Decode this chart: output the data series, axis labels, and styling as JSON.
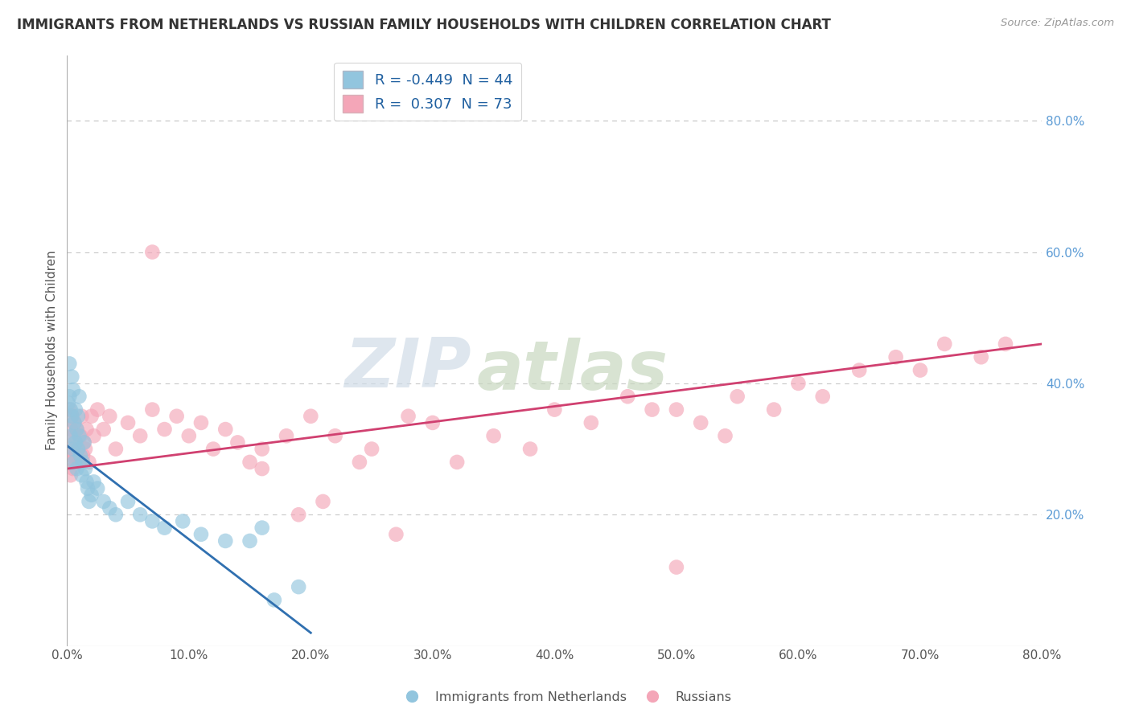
{
  "title": "IMMIGRANTS FROM NETHERLANDS VS RUSSIAN FAMILY HOUSEHOLDS WITH CHILDREN CORRELATION CHART",
  "source": "Source: ZipAtlas.com",
  "xlabel_bottom": "Immigrants from Netherlands",
  "ylabel": "Family Households with Children",
  "legend_label1": "Immigrants from Netherlands",
  "legend_label2": "Russians",
  "R1": -0.449,
  "N1": 44,
  "R2": 0.307,
  "N2": 73,
  "color_blue": "#92c5de",
  "color_pink": "#f4a6b8",
  "line_color_blue": "#3070b0",
  "line_color_pink": "#d04070",
  "xlim": [
    0.0,
    0.8
  ],
  "ylim": [
    0.0,
    0.9
  ],
  "xticks": [
    0.0,
    0.1,
    0.2,
    0.3,
    0.4,
    0.5,
    0.6,
    0.7,
    0.8
  ],
  "yticks_right": [
    0.2,
    0.4,
    0.6,
    0.8
  ],
  "blue_x": [
    0.001,
    0.002,
    0.002,
    0.003,
    0.003,
    0.004,
    0.004,
    0.005,
    0.005,
    0.006,
    0.006,
    0.007,
    0.007,
    0.008,
    0.008,
    0.009,
    0.009,
    0.01,
    0.01,
    0.011,
    0.012,
    0.013,
    0.014,
    0.015,
    0.016,
    0.017,
    0.018,
    0.02,
    0.022,
    0.025,
    0.03,
    0.035,
    0.04,
    0.05,
    0.06,
    0.07,
    0.08,
    0.095,
    0.11,
    0.13,
    0.15,
    0.16,
    0.17,
    0.19
  ],
  "blue_y": [
    0.37,
    0.43,
    0.38,
    0.36,
    0.32,
    0.41,
    0.35,
    0.39,
    0.3,
    0.34,
    0.28,
    0.36,
    0.31,
    0.33,
    0.27,
    0.35,
    0.3,
    0.32,
    0.38,
    0.29,
    0.26,
    0.28,
    0.31,
    0.27,
    0.25,
    0.24,
    0.22,
    0.23,
    0.25,
    0.24,
    0.22,
    0.21,
    0.2,
    0.22,
    0.2,
    0.19,
    0.18,
    0.19,
    0.17,
    0.16,
    0.16,
    0.18,
    0.07,
    0.09
  ],
  "pink_x": [
    0.001,
    0.002,
    0.002,
    0.003,
    0.003,
    0.004,
    0.004,
    0.005,
    0.005,
    0.006,
    0.006,
    0.007,
    0.008,
    0.009,
    0.01,
    0.011,
    0.012,
    0.013,
    0.014,
    0.015,
    0.016,
    0.018,
    0.02,
    0.022,
    0.025,
    0.03,
    0.035,
    0.04,
    0.05,
    0.06,
    0.07,
    0.08,
    0.09,
    0.1,
    0.11,
    0.12,
    0.13,
    0.14,
    0.15,
    0.16,
    0.18,
    0.2,
    0.22,
    0.25,
    0.28,
    0.3,
    0.32,
    0.35,
    0.38,
    0.4,
    0.43,
    0.46,
    0.48,
    0.5,
    0.52,
    0.54,
    0.55,
    0.58,
    0.6,
    0.62,
    0.65,
    0.68,
    0.7,
    0.72,
    0.75,
    0.77,
    0.16,
    0.19,
    0.21,
    0.24,
    0.27,
    0.5,
    0.07
  ],
  "pink_y": [
    0.3,
    0.36,
    0.28,
    0.33,
    0.26,
    0.35,
    0.29,
    0.32,
    0.27,
    0.31,
    0.34,
    0.29,
    0.33,
    0.3,
    0.28,
    0.32,
    0.35,
    0.29,
    0.31,
    0.3,
    0.33,
    0.28,
    0.35,
    0.32,
    0.36,
    0.33,
    0.35,
    0.3,
    0.34,
    0.32,
    0.36,
    0.33,
    0.35,
    0.32,
    0.34,
    0.3,
    0.33,
    0.31,
    0.28,
    0.3,
    0.32,
    0.35,
    0.32,
    0.3,
    0.35,
    0.34,
    0.28,
    0.32,
    0.3,
    0.36,
    0.34,
    0.38,
    0.36,
    0.36,
    0.34,
    0.32,
    0.38,
    0.36,
    0.4,
    0.38,
    0.42,
    0.44,
    0.42,
    0.46,
    0.44,
    0.46,
    0.27,
    0.2,
    0.22,
    0.28,
    0.17,
    0.12,
    0.6
  ],
  "blue_trend_x0": 0.0,
  "blue_trend_x1": 0.2,
  "blue_trend_y0": 0.305,
  "blue_trend_y1": 0.02,
  "pink_trend_x0": 0.0,
  "pink_trend_x1": 0.8,
  "pink_trend_y0": 0.27,
  "pink_trend_y1": 0.46,
  "watermark_top": "ZIP",
  "watermark_bot": "atlas",
  "background_color": "#ffffff",
  "grid_color": "#c8c8c8"
}
